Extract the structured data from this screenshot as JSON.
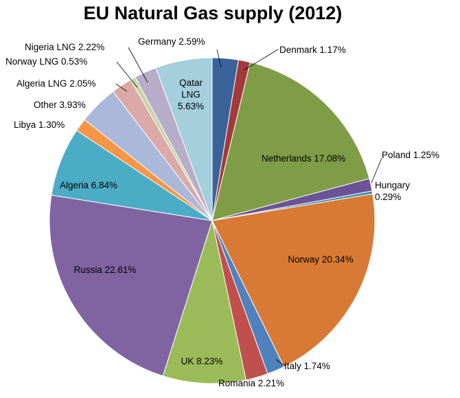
{
  "chart_data": {
    "type": "pie",
    "title": "EU Natural Gas supply (2012)",
    "slices": [
      {
        "name": "Germany",
        "value": 2.59,
        "label": "Germany 2.59%",
        "color": "#3a6399"
      },
      {
        "name": "Denmark",
        "value": 1.17,
        "label": "Denmark 1.17%",
        "color": "#a23a3a"
      },
      {
        "name": "Netherlands",
        "value": 17.08,
        "label": "Netherlands 17.08%",
        "color": "#7f9d47"
      },
      {
        "name": "Poland",
        "value": 1.25,
        "label": "Poland 1.25%",
        "color": "#6b5397"
      },
      {
        "name": "Hungary",
        "value": 0.29,
        "label": "Hungary 0.29%",
        "color": "#3d8dab"
      },
      {
        "name": "Norway",
        "value": 20.34,
        "label": "Norway 20.34%",
        "color": "#d87a35"
      },
      {
        "name": "Italy",
        "value": 1.74,
        "label": "Italy 1.74%",
        "color": "#4f81bd"
      },
      {
        "name": "Romania",
        "value": 2.21,
        "label": "Romania 2.21%",
        "color": "#c0504d"
      },
      {
        "name": "UK",
        "value": 8.23,
        "label": "UK 8.23%",
        "color": "#9bbb59"
      },
      {
        "name": "Russia",
        "value": 22.61,
        "label": "Russia 22.61%",
        "color": "#8064a2"
      },
      {
        "name": "Algeria",
        "value": 6.84,
        "label": "Algeria 6.84%",
        "color": "#4bacc6"
      },
      {
        "name": "Libya",
        "value": 1.3,
        "label": "Libya 1.30%",
        "color": "#f79646"
      },
      {
        "name": "Other",
        "value": 3.93,
        "label": "Other 3.93%",
        "color": "#aab9d9"
      },
      {
        "name": "Algeria LNG",
        "value": 2.05,
        "label": "Algeria LNG 2.05%",
        "color": "#dba9a8"
      },
      {
        "name": "Norway LNG",
        "value": 0.53,
        "label": "Norway LNG 0.53%",
        "color": "#c6d6a5"
      },
      {
        "name": "Nigeria LNG",
        "value": 2.22,
        "label": "Nigeria LNG 2.22%",
        "color": "#b8adc9"
      },
      {
        "name": "Qatar LNG",
        "value": 5.63,
        "label": "Qatar LNG 5.63%",
        "color": "#a5cfdc"
      }
    ]
  }
}
